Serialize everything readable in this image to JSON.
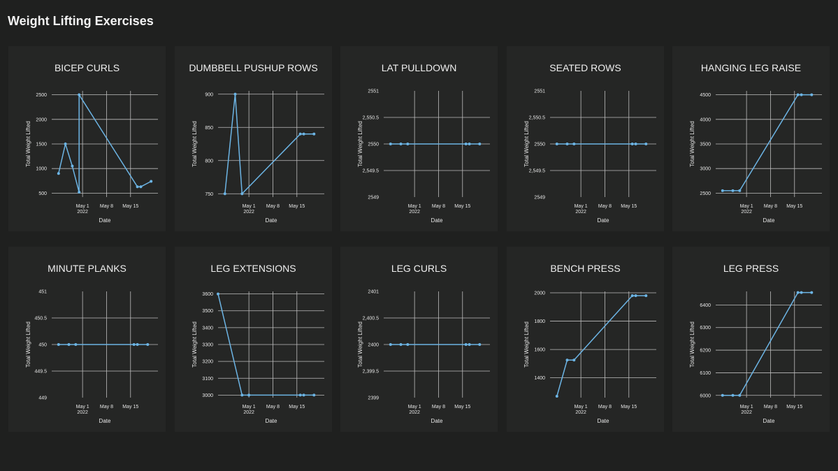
{
  "page": {
    "title": "Weight Lifting Exercises"
  },
  "colors": {
    "background": "#1f201f",
    "card": "#252625",
    "line": "#6cb4e4",
    "grid": "#bdbdbd"
  },
  "chart_data": [
    {
      "type": "line",
      "title": "BICEP CURLS",
      "xlabel": "Date",
      "ylabel": "Total Weight Lifted",
      "xlim": [
        "2022-04-22",
        "2022-05-23"
      ],
      "xticks": [
        "2022-05-01",
        "2022-05-08",
        "2022-05-15"
      ],
      "ylim": [
        420,
        2580
      ],
      "yticks": [
        500,
        1000,
        1500,
        2000,
        2500
      ],
      "x": [
        "2022-04-24",
        "2022-04-26",
        "2022-04-28",
        "2022-04-30",
        "2022-04-30",
        "2022-05-17",
        "2022-05-18",
        "2022-05-21"
      ],
      "y": [
        900,
        1500,
        1050,
        520,
        2500,
        630,
        630,
        740
      ]
    },
    {
      "type": "line",
      "title": "DUMBBELL PUSHUP ROWS",
      "xlabel": "Date",
      "ylabel": "Total Weight Lifted",
      "xlim": [
        "2022-04-22",
        "2022-05-23"
      ],
      "xticks": [
        "2022-05-01",
        "2022-05-08",
        "2022-05-15"
      ],
      "ylim": [
        745,
        905
      ],
      "yticks": [
        750,
        800,
        850,
        900
      ],
      "x": [
        "2022-04-24",
        "2022-04-27",
        "2022-04-29",
        "2022-05-16",
        "2022-05-17",
        "2022-05-20"
      ],
      "y": [
        750,
        900,
        750,
        840,
        840,
        840
      ]
    },
    {
      "type": "line",
      "title": "LAT PULLDOWN",
      "xlabel": "Date",
      "ylabel": "Total Weight Lifted",
      "xlim": [
        "2022-04-22",
        "2022-05-23"
      ],
      "xticks": [
        "2022-05-01",
        "2022-05-08",
        "2022-05-15"
      ],
      "ylim": [
        2549,
        2551
      ],
      "yticks": [
        2549,
        2549.5,
        2550,
        2550.5,
        2551
      ],
      "ytick_labels": [
        "2549",
        "2,549.5",
        "2550",
        "2,550.5",
        "2551"
      ],
      "grid_skip_edges": true,
      "x": [
        "2022-04-24",
        "2022-04-27",
        "2022-04-29",
        "2022-05-16",
        "2022-05-17",
        "2022-05-20"
      ],
      "y": [
        2550,
        2550,
        2550,
        2550,
        2550,
        2550
      ]
    },
    {
      "type": "line",
      "title": "SEATED ROWS",
      "xlabel": "Date",
      "ylabel": "Total Weight Lifted",
      "xlim": [
        "2022-04-22",
        "2022-05-23"
      ],
      "xticks": [
        "2022-05-01",
        "2022-05-08",
        "2022-05-15"
      ],
      "ylim": [
        2549,
        2551
      ],
      "yticks": [
        2549,
        2549.5,
        2550,
        2550.5,
        2551
      ],
      "ytick_labels": [
        "2549",
        "2,549.5",
        "2550",
        "2,550.5",
        "2551"
      ],
      "grid_skip_edges": true,
      "x": [
        "2022-04-24",
        "2022-04-27",
        "2022-04-29",
        "2022-05-16",
        "2022-05-17",
        "2022-05-20"
      ],
      "y": [
        2550,
        2550,
        2550,
        2550,
        2550,
        2550
      ]
    },
    {
      "type": "line",
      "title": "HANGING LEG RAISE",
      "xlabel": "Date",
      "ylabel": "Total Weight Lifted",
      "xlim": [
        "2022-04-22",
        "2022-05-23"
      ],
      "xticks": [
        "2022-05-01",
        "2022-05-08",
        "2022-05-15"
      ],
      "ylim": [
        2420,
        4580
      ],
      "yticks": [
        2500,
        3000,
        3500,
        4000,
        4500
      ],
      "x": [
        "2022-04-24",
        "2022-04-27",
        "2022-04-29",
        "2022-05-16",
        "2022-05-17",
        "2022-05-20"
      ],
      "y": [
        2550,
        2550,
        2550,
        4500,
        4500,
        4500
      ]
    },
    {
      "type": "line",
      "title": "MINUTE PLANKS",
      "xlabel": "Date",
      "ylabel": "Total Weight Lifted",
      "xlim": [
        "2022-04-22",
        "2022-05-23"
      ],
      "xticks": [
        "2022-05-01",
        "2022-05-08",
        "2022-05-15"
      ],
      "ylim": [
        449,
        451
      ],
      "yticks": [
        449,
        449.5,
        450,
        450.5,
        451
      ],
      "ytick_labels": [
        "449",
        "449.5",
        "450",
        "450.5",
        "451"
      ],
      "grid_skip_edges": true,
      "x": [
        "2022-04-24",
        "2022-04-27",
        "2022-04-29",
        "2022-05-16",
        "2022-05-17",
        "2022-05-20"
      ],
      "y": [
        450,
        450,
        450,
        450,
        450,
        450
      ]
    },
    {
      "type": "line",
      "title": "LEG EXTENSIONS",
      "xlabel": "Date",
      "ylabel": "Total Weight Lifted",
      "xlim": [
        "2022-04-22",
        "2022-05-23"
      ],
      "xticks": [
        "2022-05-01",
        "2022-05-08",
        "2022-05-15"
      ],
      "ylim": [
        2985,
        3615
      ],
      "yticks": [
        3000,
        3100,
        3200,
        3300,
        3400,
        3500,
        3600
      ],
      "x": [
        "2022-04-22",
        "2022-04-29",
        "2022-05-01",
        "2022-05-16",
        "2022-05-17",
        "2022-05-20"
      ],
      "y": [
        3600,
        3000,
        3000,
        3000,
        3000,
        3000
      ]
    },
    {
      "type": "line",
      "title": "LEG CURLS",
      "xlabel": "Date",
      "ylabel": "Total Weight Lifted",
      "xlim": [
        "2022-04-22",
        "2022-05-23"
      ],
      "xticks": [
        "2022-05-01",
        "2022-05-08",
        "2022-05-15"
      ],
      "ylim": [
        2399,
        2401
      ],
      "yticks": [
        2399,
        2399.5,
        2400,
        2400.5,
        2401
      ],
      "ytick_labels": [
        "2399",
        "2,399.5",
        "2400",
        "2,400.5",
        "2401"
      ],
      "grid_skip_edges": true,
      "x": [
        "2022-04-24",
        "2022-04-27",
        "2022-04-29",
        "2022-05-16",
        "2022-05-17",
        "2022-05-20"
      ],
      "y": [
        2400,
        2400,
        2400,
        2400,
        2400,
        2400
      ]
    },
    {
      "type": "line",
      "title": "BENCH PRESS",
      "xlabel": "Date",
      "ylabel": "Total Weight Lifted",
      "xlim": [
        "2022-04-22",
        "2022-05-23"
      ],
      "xticks": [
        "2022-05-01",
        "2022-05-08",
        "2022-05-15"
      ],
      "ylim": [
        1260,
        2010
      ],
      "yticks": [
        1400,
        1600,
        1800,
        2000
      ],
      "x": [
        "2022-04-24",
        "2022-04-27",
        "2022-04-29",
        "2022-05-16",
        "2022-05-17",
        "2022-05-20"
      ],
      "y": [
        1270,
        1525,
        1525,
        1980,
        1980,
        1980
      ]
    },
    {
      "type": "line",
      "title": "LEG PRESS",
      "xlabel": "Date",
      "ylabel": "Total Weight Lifted",
      "xlim": [
        "2022-04-22",
        "2022-05-23"
      ],
      "xticks": [
        "2022-05-01",
        "2022-05-08",
        "2022-05-15"
      ],
      "ylim": [
        5990,
        6460
      ],
      "yticks": [
        6000,
        6100,
        6200,
        6300,
        6400
      ],
      "x": [
        "2022-04-24",
        "2022-04-27",
        "2022-04-29",
        "2022-05-16",
        "2022-05-17",
        "2022-05-20"
      ],
      "y": [
        6000,
        6000,
        6000,
        6455,
        6455,
        6455
      ]
    }
  ],
  "xtick_labels": [
    "May 1",
    "May 8",
    "May 15"
  ],
  "xtick_year": "2022"
}
